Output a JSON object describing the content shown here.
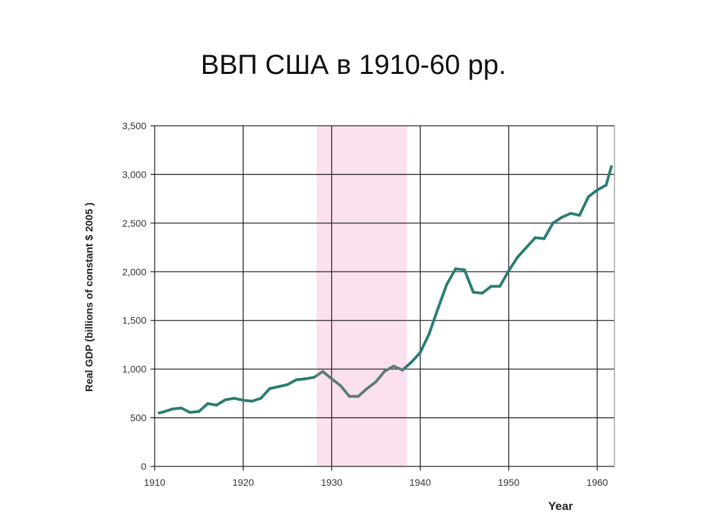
{
  "title": "ВВП США в 1910-60 рр.",
  "chart_data": {
    "type": "line",
    "title": "ВВП США в 1910-60 рр.",
    "xlabel": "Year",
    "ylabel": "Real GDP (billions of constant $ 2005 )",
    "xlim": [
      1910,
      1962
    ],
    "ylim": [
      0,
      3500
    ],
    "xticks": [
      "1910",
      "1920",
      "1930",
      "1940",
      "1950",
      "1960"
    ],
    "yticks": [
      "0",
      "500",
      "1,000",
      "1,500",
      "2,000",
      "2,500",
      "3,000",
      "3,500"
    ],
    "grid": true,
    "shaded_region": {
      "x": [
        1928.3,
        1938.5
      ],
      "color": "#fbe0ef"
    },
    "line_color": "#2a7d72",
    "shaded_line_color": "#5b7c7a",
    "x": [
      1910.5,
      1911,
      1912,
      1913,
      1914,
      1915,
      1916,
      1917,
      1918,
      1919,
      1920,
      1921,
      1922,
      1923,
      1924,
      1925,
      1926,
      1927,
      1928,
      1929,
      1930,
      1931,
      1932,
      1933,
      1934,
      1935,
      1936,
      1937,
      1938,
      1939,
      1940,
      1941,
      1942,
      1943,
      1944,
      1945,
      1946,
      1947,
      1948,
      1949,
      1950,
      1951,
      1952,
      1953,
      1954,
      1955,
      1956,
      1957,
      1958,
      1959,
      1960,
      1961,
      1961.6
    ],
    "y": [
      550,
      560,
      590,
      600,
      555,
      565,
      645,
      630,
      685,
      700,
      680,
      670,
      700,
      800,
      820,
      840,
      890,
      900,
      915,
      975,
      900,
      830,
      720,
      720,
      800,
      870,
      980,
      1030,
      990,
      1070,
      1170,
      1360,
      1620,
      1870,
      2030,
      2020,
      1790,
      1780,
      1850,
      1850,
      2010,
      2150,
      2250,
      2350,
      2340,
      2500,
      2560,
      2600,
      2580,
      2770,
      2840,
      2890,
      3080
    ]
  }
}
